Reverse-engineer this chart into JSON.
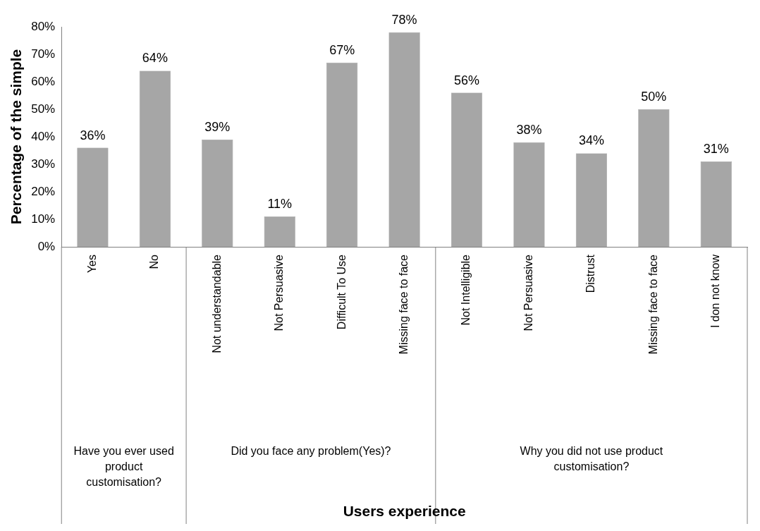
{
  "chart_data": {
    "type": "bar",
    "ylabel": "Percentage of the simple",
    "categories": [
      "Yes",
      "No",
      "Not understandable",
      "Not Persuasive",
      "Difficult To Use",
      "Missing face to face",
      "Not Intelligible",
      "Not Persuasive",
      "Distrust",
      "Missing face to face",
      "I don not know"
    ],
    "values": [
      36,
      64,
      39,
      11,
      67,
      78,
      56,
      38,
      34,
      50,
      31
    ],
    "color": "#a6a6a6",
    "ylim": [
      0,
      80
    ],
    "yticks": [
      {
        "value": 0,
        "label": "0%"
      },
      {
        "value": 10,
        "label": "10%"
      },
      {
        "value": 20,
        "label": "20%"
      },
      {
        "value": 30,
        "label": "30%"
      },
      {
        "value": 40,
        "label": "40%"
      },
      {
        "value": 50,
        "label": "50%"
      },
      {
        "value": 60,
        "label": "60%"
      },
      {
        "value": 70,
        "label": "70%"
      },
      {
        "value": 80,
        "label": "80%"
      }
    ],
    "value_labels": [
      "36%",
      "64%",
      "39%",
      "11%",
      "67%",
      "78%",
      "56%",
      "38%",
      "34%",
      "50%",
      "31%"
    ],
    "annotations": [
      "Have you ever used product customisation?",
      "Did you face any problem(Yes)?",
      "Why you did not use product customisation?",
      "Users experience"
    ],
    "grid": false,
    "legend": false
  }
}
